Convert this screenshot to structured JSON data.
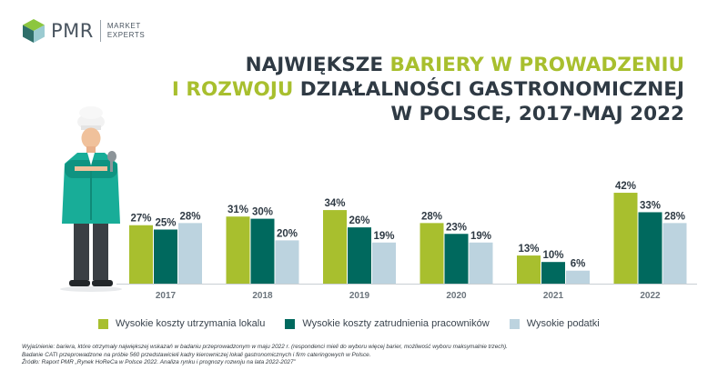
{
  "logo": {
    "name": "PMR",
    "sub_line1": "MARKET",
    "sub_line2": "EXPERTS"
  },
  "title": {
    "line1_a": "NAJWIĘKSZE ",
    "line1_b": "BARIERY W PROWADZENIU",
    "line2_a": "I ROZWOJU",
    "line2_b": " DZIAŁALNOŚCI GASTRONOMICZNEJ",
    "line3": "W POLSCE, 2017-MAJ 2022"
  },
  "colors": {
    "green": "#a8bf2e",
    "teal": "#00695e",
    "light_blue": "#bcd3df",
    "title_dark": "#2f3a44",
    "axis": "#c9ced3"
  },
  "chart_data": {
    "type": "bar",
    "categories": [
      "2017",
      "2018",
      "2019",
      "2020",
      "2021",
      "2022"
    ],
    "series": [
      {
        "name": "Wysokie koszty utrzymania lokalu",
        "values": [
          27,
          31,
          34,
          28,
          13,
          42
        ],
        "labels": [
          "27%",
          "31%",
          "34%",
          "28%",
          "13%",
          "42%"
        ]
      },
      {
        "name": "Wysokie koszty zatrudnienia pracowników",
        "values": [
          25,
          30,
          26,
          23,
          10,
          33
        ],
        "labels": [
          "25%",
          "30%",
          "26%",
          "23%",
          "10%",
          "33%"
        ]
      },
      {
        "name": "Wysokie podatki",
        "values": [
          28,
          20,
          19,
          19,
          6,
          28
        ],
        "labels": [
          "28%",
          "20%",
          "19%",
          "19%",
          "6%",
          "28%"
        ]
      }
    ],
    "ylim": [
      0,
      45
    ],
    "legend_position": "bottom",
    "grid": false
  },
  "notes": {
    "line1": "Wyjaśnienie: bariera, które otrzymały największej wskazań w badaniu przeprowadzonym w maju 2022 r. (respondenci mieli do wyboru więcej barier, możliwość wyboru maksymalnie trzech).",
    "line2": "Badanie CATI przeprowadzone na próbie 560 przedstawicieli kadry kierowniczej lokali gastronomicznych i firm cateringowych w Polsce.",
    "line3": "Źródło: Raport PMR „Rynek HoReCa w Polsce 2022. Analiza rynku i prognozy rozwoju na lata 2022-2027”"
  }
}
